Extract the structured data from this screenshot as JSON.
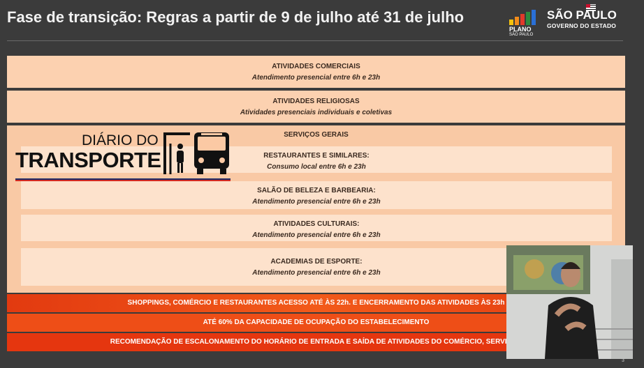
{
  "slide": {
    "title": "Fase de transição: Regras a partir de 9 de julho até 31 de julho",
    "page_number": "3"
  },
  "logos": {
    "plano": {
      "name": "PLANO",
      "sub": "SÃO PAULO"
    },
    "sp": {
      "name": "SÃO PAULO",
      "sub": "GOVERNO DO ESTADO"
    }
  },
  "blocks": [
    {
      "title": "ATIVIDADES COMERCIAIS",
      "subtitle": "Atendimento presencial entre 6h e 23h"
    },
    {
      "title": "ATIVIDADES RELIGIOSAS",
      "subtitle": "Atividades presenciais individuais e coletivas"
    }
  ],
  "general": {
    "title": "SERVIÇOS GERAIS",
    "items": [
      {
        "title": "RESTAURANTES E SIMILARES:",
        "subtitle": "Consumo local entre 6h e 23h"
      },
      {
        "title": "SALÃO DE BELEZA E BARBEARIA:",
        "subtitle": "Atendimento presencial entre 6h e 23h"
      },
      {
        "title": "ATIVIDADES CULTURAIS:",
        "subtitle": "Atendimento presencial entre 6h e 23h"
      },
      {
        "title": "ACADEMIAS DE ESPORTE:",
        "subtitle": "Atendimento presencial entre 6h e 23h"
      }
    ]
  },
  "red_bars": [
    "SHOPPINGS, COMÉRCIO E RESTAURANTES ACESSO ATÉ ÀS 22h. E ENCERRAMENTO DAS ATIVIDADES ÀS 23h",
    "ATÉ 60% DA CAPACIDADE DE OCUPAÇÃO DO ESTABELECIMENTO",
    "RECOMENDAÇÃO DE ESCALONAMENTO DO HORÁRIO DE ENTRADA E SAÍDA DE ATIVIDADES DO COMÉRCIO, SERVIÇOS"
  ],
  "watermark": {
    "line1": "DIÁRIO DO",
    "line2": "TRANSPORTE"
  },
  "colors": {
    "background": "#3b3b3b",
    "block": "#fcd1b0",
    "sub_block": "#fde2cc",
    "red_bar": "#ee4e17"
  }
}
